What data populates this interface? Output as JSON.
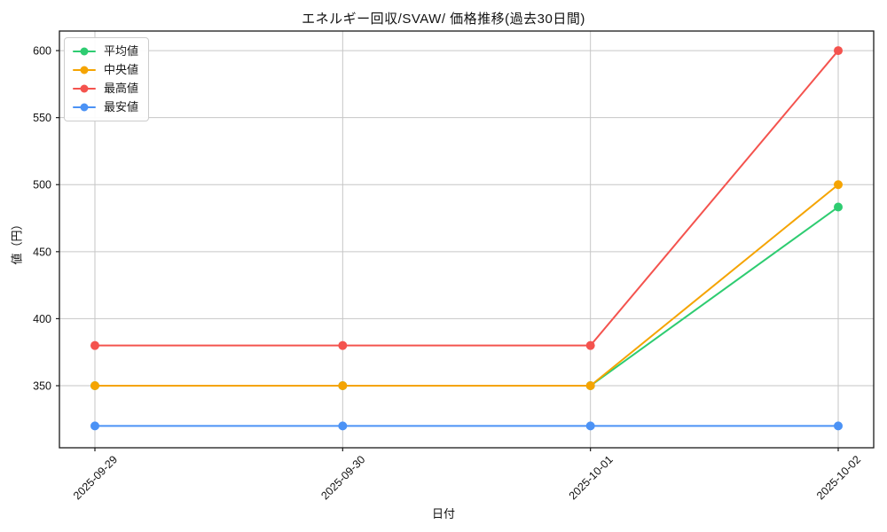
{
  "chart_data": {
    "type": "line",
    "title": "エネルギー回収/SVAW/ 価格推移(過去30日間)",
    "xlabel": "日付",
    "ylabel": "値（円）",
    "x": [
      "2025-09-29",
      "2025-09-30",
      "2025-10-01",
      "2025-10-02"
    ],
    "series": [
      {
        "name": "平均値",
        "color": "#2ecc71",
        "values": [
          350,
          350,
          350,
          483.3
        ]
      },
      {
        "name": "中央値",
        "color": "#f5a402",
        "values": [
          350,
          350,
          350,
          500
        ]
      },
      {
        "name": "最高値",
        "color": "#f4534e",
        "values": [
          380,
          380,
          380,
          600
        ]
      },
      {
        "name": "最安値",
        "color": "#4b92f5",
        "values": [
          320,
          320,
          320,
          320
        ]
      }
    ],
    "yticks": [
      350,
      400,
      450,
      500,
      550,
      600
    ],
    "ylim": [
      303.7,
      614.6
    ],
    "grid": true,
    "legend_position": "upper left",
    "x_tick_rotation_deg": 45,
    "colors": {
      "grid": "#c6c6c6",
      "spine": "#1a1a1a",
      "tick_label": "#111111",
      "background": "#ffffff"
    }
  }
}
